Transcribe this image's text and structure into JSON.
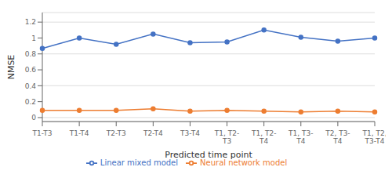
{
  "chart_data": {
    "type": "line",
    "xlabel": "Predicted time point",
    "ylabel": "NMSE",
    "categories": [
      "T1-T3",
      "T1-T4",
      "T2-T3",
      "T2-T4",
      "T3-T4",
      "T1, T2-\nT3",
      "T1, T2-\nT4",
      "T1, T3-\nT4",
      "T2, T3-\nT4",
      "T1, T2,\nT3-T4"
    ],
    "series": [
      {
        "name": "Linear mixed model",
        "color": "#4472C4",
        "marker": "circle",
        "values": [
          0.87,
          1.0,
          0.92,
          1.05,
          0.94,
          0.95,
          1.1,
          1.01,
          0.96,
          1.0
        ]
      },
      {
        "name": "Neural network model",
        "color": "#ED7D31",
        "marker": "circle",
        "values": [
          0.09,
          0.09,
          0.09,
          0.11,
          0.08,
          0.09,
          0.08,
          0.07,
          0.08,
          0.07
        ]
      }
    ],
    "ylim": [
      -0.05,
      1.32
    ],
    "yticks": [
      0,
      0.2,
      0.4,
      0.6,
      0.8,
      1.0,
      1.2
    ],
    "grid": true,
    "legend": "bottom"
  }
}
